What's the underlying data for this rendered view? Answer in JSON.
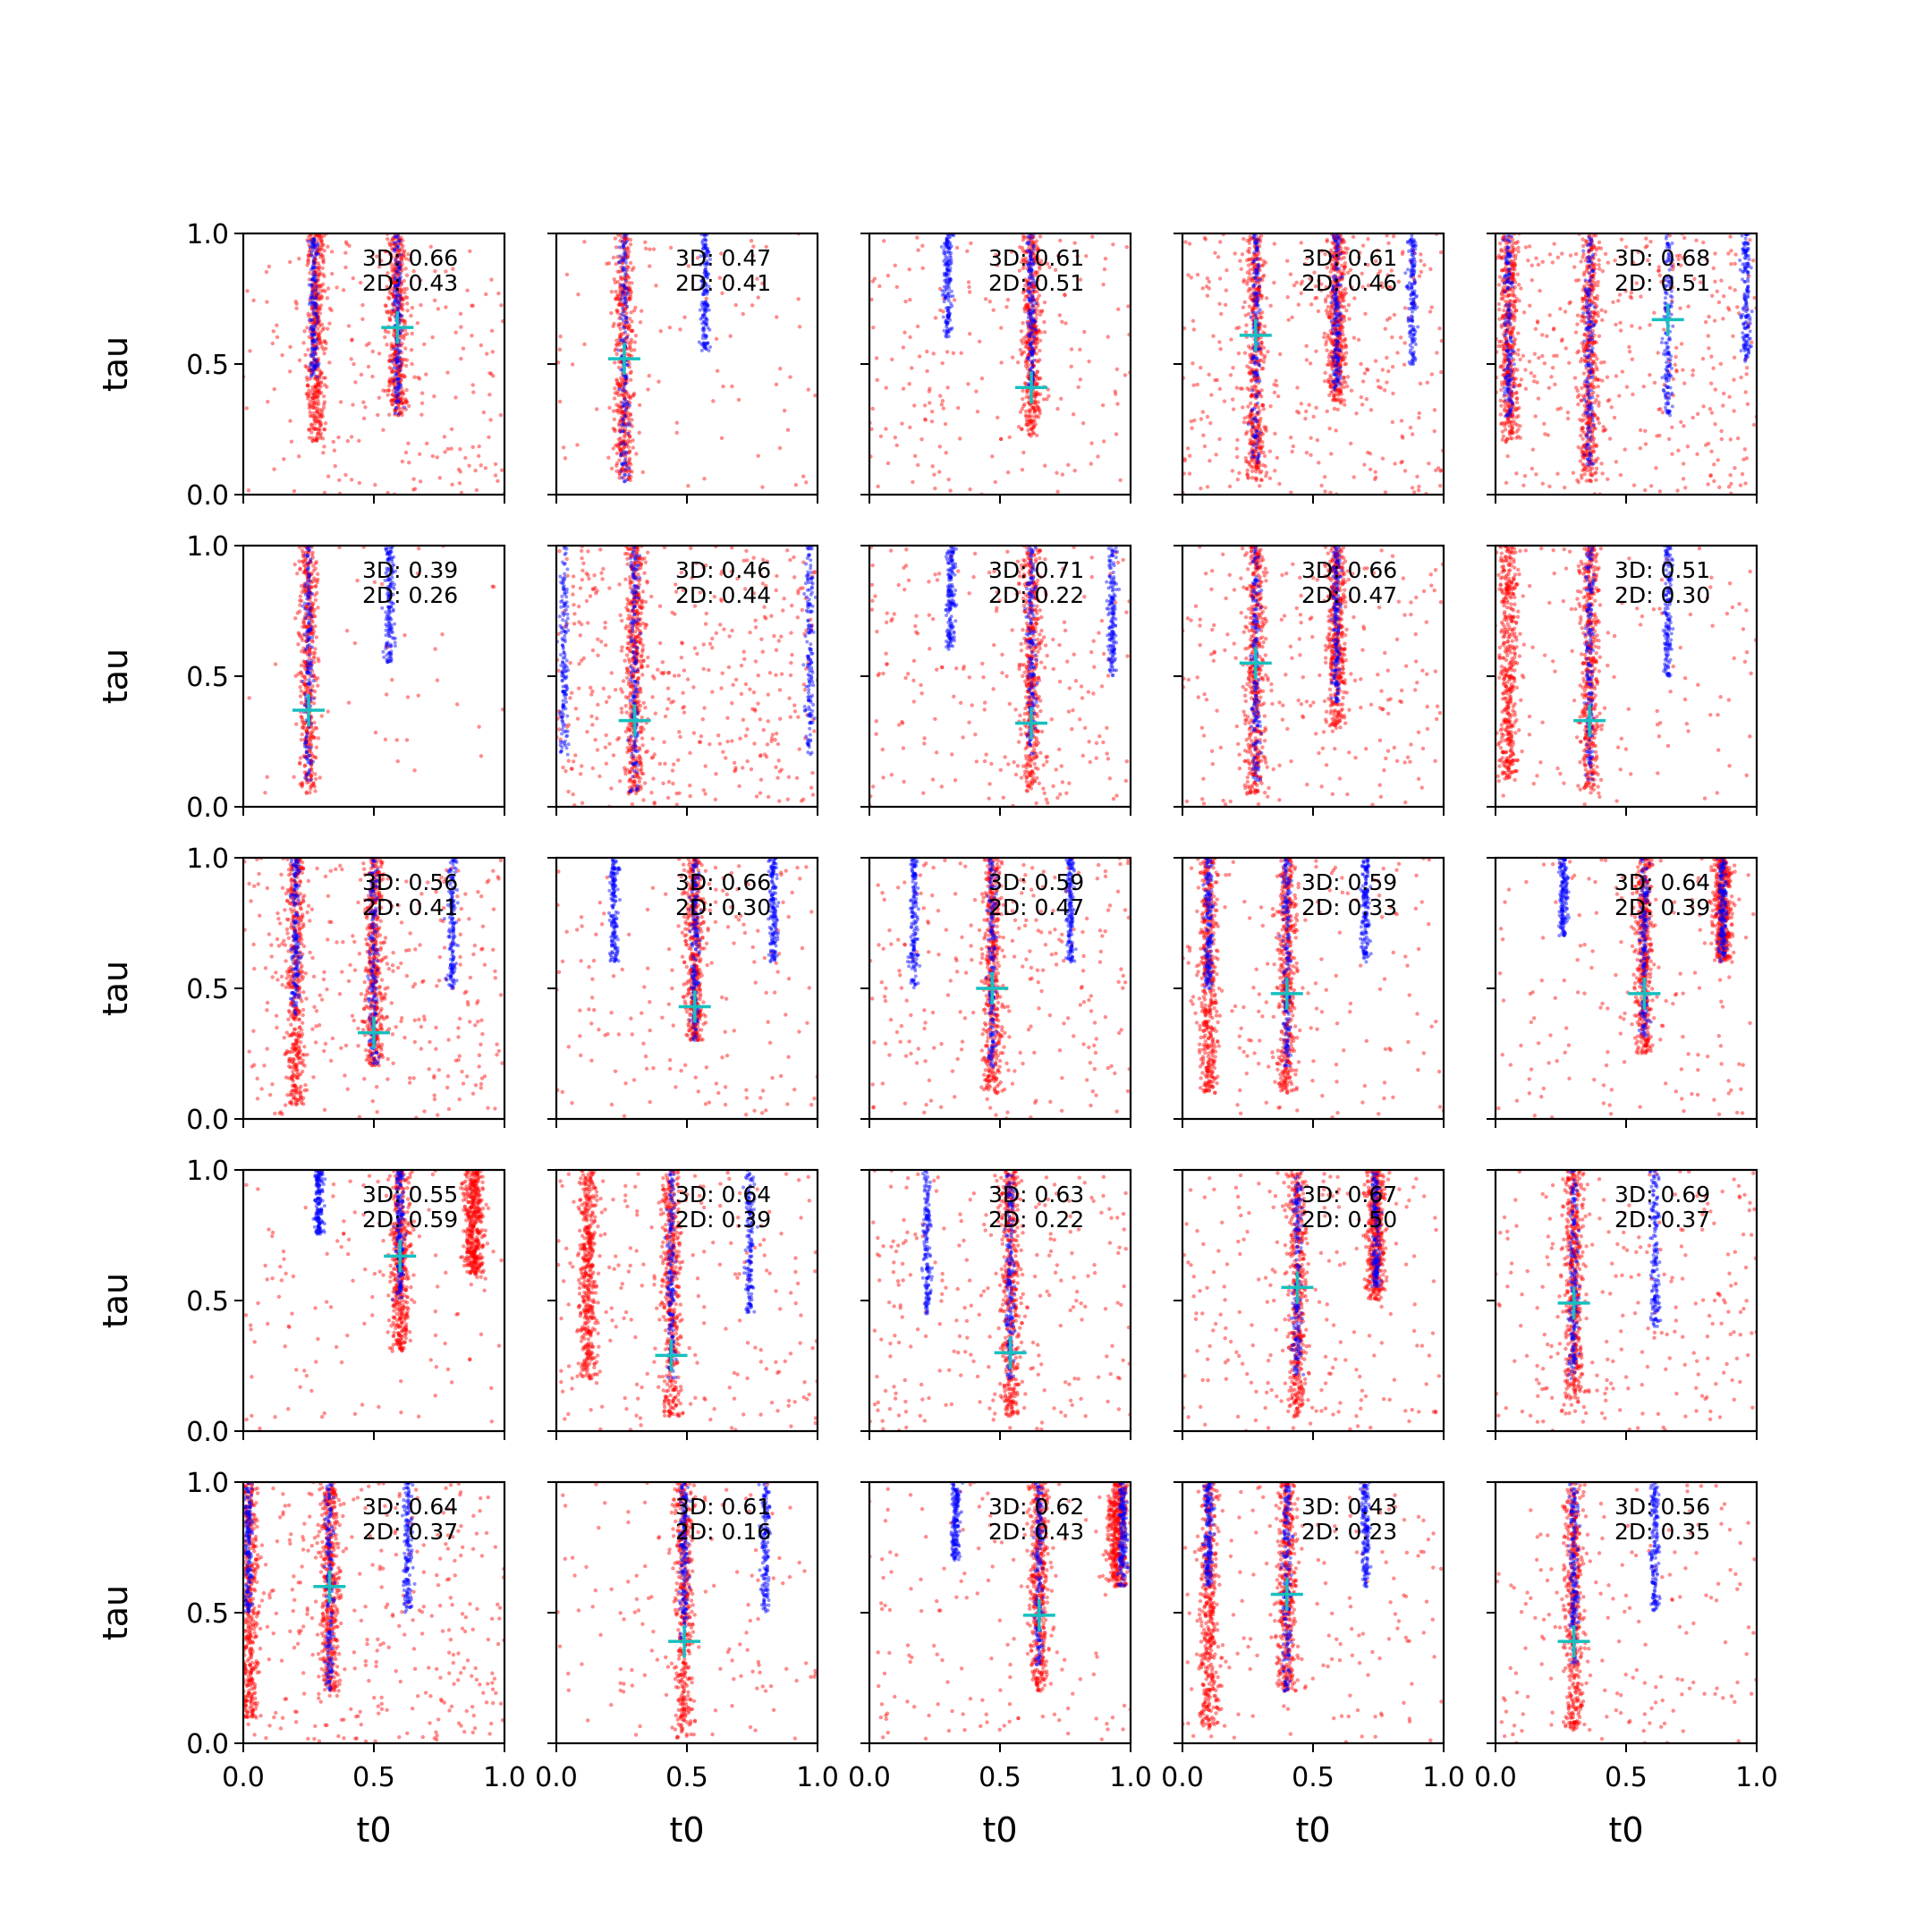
{
  "chart_data": {
    "type": "scatter",
    "layout": {
      "rows": 5,
      "cols": 5
    },
    "xlabel": "t0",
    "ylabel": "tau",
    "xlim": [
      0.0,
      1.0
    ],
    "ylim": [
      0.0,
      1.0
    ],
    "xticks": [
      "0.0",
      "0.5",
      "1.0"
    ],
    "yticks": [
      "0.0",
      "0.5",
      "1.0"
    ],
    "series_colors": {
      "blue": "#0000ff",
      "red": "#ff0000",
      "marker": "#17bfbf"
    },
    "panels": [
      {
        "label3d": "3D: 0.66",
        "label2d": "2D: 0.43",
        "marker": [
          0.59,
          0.64
        ],
        "blue_bands": [
          [
            0.27,
            0.45
          ],
          [
            0.59,
            0.3
          ]
        ],
        "red_bands": [
          [
            0.28,
            0.2
          ],
          [
            0.59,
            0.3
          ]
        ],
        "red_bg": 0.5
      },
      {
        "label3d": "3D: 0.47",
        "label2d": "2D: 0.41",
        "marker": [
          0.26,
          0.52
        ],
        "blue_bands": [
          [
            0.26,
            0.05
          ],
          [
            0.57,
            0.55
          ]
        ],
        "red_bands": [
          [
            0.26,
            0.05
          ]
        ],
        "red_bg": 0.2
      },
      {
        "label3d": "3D: 0.61",
        "label2d": "2D: 0.51",
        "marker": [
          0.62,
          0.41
        ],
        "blue_bands": [
          [
            0.3,
            0.6
          ],
          [
            0.62,
            0.4
          ]
        ],
        "red_bands": [
          [
            0.62,
            0.22
          ]
        ],
        "red_bg": 0.45
      },
      {
        "label3d": "3D: 0.61",
        "label2d": "2D: 0.46",
        "marker": [
          0.28,
          0.61
        ],
        "blue_bands": [
          [
            0.28,
            0.1
          ],
          [
            0.59,
            0.4
          ],
          [
            0.88,
            0.5
          ]
        ],
        "red_bands": [
          [
            0.28,
            0.05
          ],
          [
            0.59,
            0.35
          ]
        ],
        "red_bg": 0.8
      },
      {
        "label3d": "3D: 0.68",
        "label2d": "2D: 0.51",
        "marker": [
          0.66,
          0.67
        ],
        "blue_bands": [
          [
            0.05,
            0.3
          ],
          [
            0.36,
            0.1
          ],
          [
            0.66,
            0.3
          ],
          [
            0.96,
            0.5
          ]
        ],
        "red_bands": [
          [
            0.05,
            0.2
          ],
          [
            0.36,
            0.05
          ]
        ],
        "red_bg": 0.85
      },
      {
        "label3d": "3D: 0.39",
        "label2d": "2D: 0.26",
        "marker": [
          0.25,
          0.37
        ],
        "blue_bands": [
          [
            0.25,
            0.1
          ],
          [
            0.56,
            0.55
          ]
        ],
        "red_bands": [
          [
            0.25,
            0.05
          ]
        ],
        "red_bg": 0.1
      },
      {
        "label3d": "3D: 0.46",
        "label2d": "2D: 0.44",
        "marker": [
          0.3,
          0.33
        ],
        "blue_bands": [
          [
            0.3,
            0.05
          ],
          [
            0.03,
            0.2
          ],
          [
            0.97,
            0.2
          ]
        ],
        "red_bands": [
          [
            0.3,
            0.05
          ]
        ],
        "red_bg": 1.0
      },
      {
        "label3d": "3D: 0.71",
        "label2d": "2D: 0.22",
        "marker": [
          0.62,
          0.32
        ],
        "blue_bands": [
          [
            0.31,
            0.6
          ],
          [
            0.62,
            0.2
          ],
          [
            0.93,
            0.5
          ]
        ],
        "red_bands": [
          [
            0.62,
            0.05
          ]
        ],
        "red_bg": 0.5
      },
      {
        "label3d": "3D: 0.66",
        "label2d": "2D: 0.47",
        "marker": [
          0.28,
          0.55
        ],
        "blue_bands": [
          [
            0.28,
            0.1
          ],
          [
            0.59,
            0.4
          ]
        ],
        "red_bands": [
          [
            0.28,
            0.05
          ],
          [
            0.59,
            0.3
          ]
        ],
        "red_bg": 0.55
      },
      {
        "label3d": "3D: 0.51",
        "label2d": "2D: 0.30",
        "marker": [
          0.36,
          0.33
        ],
        "blue_bands": [
          [
            0.36,
            0.1
          ],
          [
            0.66,
            0.5
          ]
        ],
        "red_bands": [
          [
            0.36,
            0.05
          ],
          [
            0.05,
            0.1
          ]
        ],
        "red_bg": 0.3
      },
      {
        "label3d": "3D: 0.56",
        "label2d": "2D: 0.41",
        "marker": [
          0.5,
          0.33
        ],
        "blue_bands": [
          [
            0.2,
            0.4
          ],
          [
            0.5,
            0.2
          ],
          [
            0.8,
            0.5
          ]
        ],
        "red_bands": [
          [
            0.2,
            0.05
          ],
          [
            0.5,
            0.2
          ]
        ],
        "red_bg": 0.7
      },
      {
        "label3d": "3D: 0.66",
        "label2d": "2D: 0.30",
        "marker": [
          0.53,
          0.43
        ],
        "blue_bands": [
          [
            0.22,
            0.6
          ],
          [
            0.53,
            0.3
          ],
          [
            0.83,
            0.6
          ]
        ],
        "red_bands": [
          [
            0.53,
            0.3
          ]
        ],
        "red_bg": 0.4
      },
      {
        "label3d": "3D: 0.59",
        "label2d": "2D: 0.47",
        "marker": [
          0.47,
          0.5
        ],
        "blue_bands": [
          [
            0.17,
            0.5
          ],
          [
            0.47,
            0.2
          ],
          [
            0.77,
            0.6
          ]
        ],
        "red_bands": [
          [
            0.47,
            0.1
          ]
        ],
        "red_bg": 0.6
      },
      {
        "label3d": "3D: 0.59",
        "label2d": "2D: 0.33",
        "marker": [
          0.4,
          0.48
        ],
        "blue_bands": [
          [
            0.1,
            0.5
          ],
          [
            0.4,
            0.2
          ],
          [
            0.7,
            0.6
          ]
        ],
        "red_bands": [
          [
            0.1,
            0.1
          ],
          [
            0.4,
            0.1
          ]
        ],
        "red_bg": 0.4
      },
      {
        "label3d": "3D: 0.64",
        "label2d": "2D: 0.39",
        "marker": [
          0.57,
          0.48
        ],
        "blue_bands": [
          [
            0.26,
            0.7
          ],
          [
            0.57,
            0.3
          ],
          [
            0.87,
            0.6
          ]
        ],
        "red_bands": [
          [
            0.57,
            0.25
          ],
          [
            0.87,
            0.6
          ]
        ],
        "red_bg": 0.35
      },
      {
        "label3d": "3D: 0.55",
        "label2d": "2D: 0.59",
        "marker": [
          0.6,
          0.67
        ],
        "blue_bands": [
          [
            0.29,
            0.75
          ],
          [
            0.6,
            0.5
          ]
        ],
        "red_bands": [
          [
            0.6,
            0.3
          ],
          [
            0.88,
            0.6
          ]
        ],
        "red_bg": 0.3
      },
      {
        "label3d": "3D: 0.64",
        "label2d": "2D: 0.39",
        "marker": [
          0.44,
          0.29
        ],
        "blue_bands": [
          [
            0.44,
            0.2
          ],
          [
            0.74,
            0.45
          ]
        ],
        "red_bands": [
          [
            0.44,
            0.05
          ],
          [
            0.12,
            0.2
          ]
        ],
        "red_bg": 0.5
      },
      {
        "label3d": "3D: 0.63",
        "label2d": "2D: 0.22",
        "marker": [
          0.54,
          0.3
        ],
        "blue_bands": [
          [
            0.22,
            0.45
          ],
          [
            0.54,
            0.2
          ]
        ],
        "red_bands": [
          [
            0.54,
            0.05
          ]
        ],
        "red_bg": 0.6
      },
      {
        "label3d": "3D: 0.67",
        "label2d": "2D: 0.50",
        "marker": [
          0.44,
          0.55
        ],
        "blue_bands": [
          [
            0.44,
            0.2
          ],
          [
            0.74,
            0.55
          ]
        ],
        "red_bands": [
          [
            0.44,
            0.05
          ],
          [
            0.74,
            0.5
          ]
        ],
        "red_bg": 0.5
      },
      {
        "label3d": "3D: 0.69",
        "label2d": "2D: 0.37",
        "marker": [
          0.3,
          0.49
        ],
        "blue_bands": [
          [
            0.3,
            0.2
          ],
          [
            0.61,
            0.4
          ]
        ],
        "red_bands": [
          [
            0.3,
            0.1
          ]
        ],
        "red_bg": 0.6
      },
      {
        "label3d": "3D: 0.64",
        "label2d": "2D: 0.37",
        "marker": [
          0.33,
          0.6
        ],
        "blue_bands": [
          [
            0.02,
            0.5
          ],
          [
            0.33,
            0.2
          ],
          [
            0.63,
            0.5
          ]
        ],
        "red_bands": [
          [
            0.02,
            0.1
          ],
          [
            0.33,
            0.2
          ]
        ],
        "red_bg": 0.8
      },
      {
        "label3d": "3D: 0.61",
        "label2d": "2D: 0.16",
        "marker": [
          0.49,
          0.39
        ],
        "blue_bands": [
          [
            0.8,
            0.5
          ],
          [
            0.49,
            0.4
          ]
        ],
        "red_bands": [
          [
            0.49,
            0.02
          ]
        ],
        "red_bg": 0.3
      },
      {
        "label3d": "3D: 0.62",
        "label2d": "2D: 0.43",
        "marker": [
          0.65,
          0.49
        ],
        "blue_bands": [
          [
            0.33,
            0.7
          ],
          [
            0.65,
            0.3
          ],
          [
            0.97,
            0.6
          ]
        ],
        "red_bands": [
          [
            0.65,
            0.2
          ],
          [
            0.95,
            0.6
          ]
        ],
        "red_bg": 0.35
      },
      {
        "label3d": "3D: 0.43",
        "label2d": "2D: 0.23",
        "marker": [
          0.4,
          0.57
        ],
        "blue_bands": [
          [
            0.1,
            0.6
          ],
          [
            0.4,
            0.2
          ],
          [
            0.7,
            0.6
          ]
        ],
        "red_bands": [
          [
            0.1,
            0.05
          ],
          [
            0.4,
            0.2
          ]
        ],
        "red_bg": 0.35
      },
      {
        "label3d": "3D: 0.56",
        "label2d": "2D: 0.35",
        "marker": [
          0.3,
          0.39
        ],
        "blue_bands": [
          [
            0.3,
            0.3
          ],
          [
            0.61,
            0.5
          ]
        ],
        "red_bands": [
          [
            0.3,
            0.05
          ]
        ],
        "red_bg": 0.4
      }
    ]
  }
}
